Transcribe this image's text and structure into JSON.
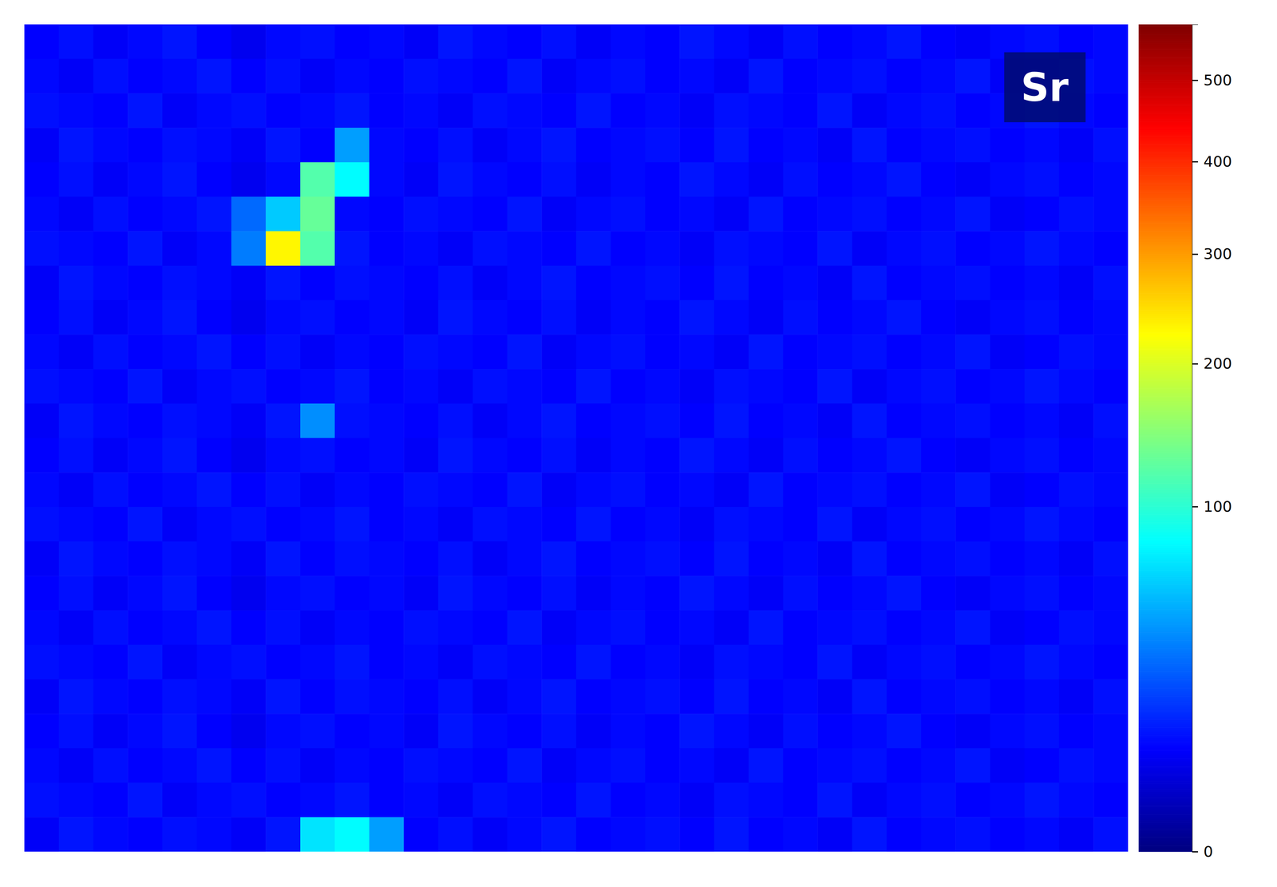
{
  "chart_data": {
    "type": "heatmap",
    "tick_labels": false,
    "annotations": [
      "Sr"
    ],
    "colorbar": {
      "range": [
        0,
        575
      ],
      "ticks": [
        0,
        100,
        200,
        300,
        400,
        500
      ]
    },
    "values": [
      [
        9,
        11,
        8,
        10,
        12,
        9,
        7,
        10,
        11,
        9,
        10,
        8,
        12,
        10,
        9,
        11,
        8,
        10,
        9,
        12,
        10,
        8,
        11,
        9,
        10,
        12,
        9,
        8,
        10,
        11,
        9,
        10
      ],
      [
        10,
        8,
        11,
        9,
        10,
        12,
        9,
        11,
        8,
        10,
        9,
        11,
        10,
        9,
        12,
        8,
        10,
        11,
        9,
        10,
        8,
        12,
        9,
        10,
        11,
        9,
        10,
        12,
        8,
        9,
        11,
        10
      ],
      [
        11,
        10,
        9,
        12,
        8,
        10,
        11,
        9,
        10,
        12,
        9,
        10,
        8,
        11,
        10,
        9,
        12,
        9,
        10,
        8,
        11,
        10,
        9,
        12,
        8,
        10,
        11,
        9,
        10,
        12,
        10,
        9
      ],
      [
        8,
        12,
        10,
        9,
        11,
        10,
        8,
        12,
        9,
        45,
        10,
        9,
        11,
        8,
        10,
        12,
        9,
        10,
        11,
        9,
        12,
        9,
        10,
        8,
        12,
        9,
        10,
        11,
        9,
        10,
        8,
        11
      ],
      [
        9,
        11,
        8,
        10,
        12,
        9,
        7,
        10,
        120,
        80,
        10,
        8,
        12,
        10,
        9,
        11,
        8,
        10,
        9,
        12,
        10,
        8,
        11,
        9,
        10,
        12,
        9,
        8,
        10,
        11,
        9,
        10
      ],
      [
        10,
        8,
        11,
        9,
        10,
        12,
        30,
        60,
        130,
        10,
        9,
        11,
        10,
        9,
        12,
        8,
        10,
        11,
        9,
        10,
        8,
        12,
        9,
        10,
        11,
        9,
        10,
        12,
        8,
        9,
        11,
        10
      ],
      [
        11,
        10,
        9,
        12,
        8,
        10,
        35,
        230,
        120,
        12,
        9,
        10,
        8,
        11,
        10,
        9,
        12,
        9,
        10,
        8,
        11,
        10,
        9,
        12,
        8,
        10,
        11,
        9,
        10,
        12,
        10,
        9
      ],
      [
        8,
        12,
        10,
        9,
        11,
        10,
        8,
        12,
        9,
        11,
        10,
        9,
        11,
        8,
        10,
        12,
        9,
        10,
        11,
        9,
        12,
        9,
        10,
        8,
        12,
        9,
        10,
        11,
        9,
        10,
        8,
        11
      ],
      [
        9,
        11,
        8,
        10,
        12,
        9,
        7,
        10,
        11,
        9,
        10,
        8,
        12,
        10,
        9,
        11,
        8,
        10,
        9,
        12,
        10,
        8,
        11,
        9,
        10,
        12,
        9,
        8,
        10,
        11,
        9,
        10
      ],
      [
        10,
        8,
        11,
        9,
        10,
        12,
        9,
        11,
        8,
        10,
        9,
        11,
        10,
        9,
        12,
        8,
        10,
        11,
        9,
        10,
        8,
        12,
        9,
        10,
        11,
        9,
        10,
        12,
        8,
        9,
        11,
        10
      ],
      [
        11,
        10,
        9,
        12,
        8,
        10,
        11,
        9,
        10,
        12,
        9,
        10,
        8,
        11,
        10,
        9,
        12,
        9,
        10,
        8,
        11,
        10,
        9,
        12,
        8,
        10,
        11,
        9,
        10,
        12,
        10,
        9
      ],
      [
        8,
        12,
        10,
        9,
        11,
        10,
        8,
        12,
        40,
        11,
        10,
        9,
        11,
        8,
        10,
        12,
        9,
        10,
        11,
        9,
        12,
        9,
        10,
        8,
        12,
        9,
        10,
        11,
        9,
        10,
        8,
        11
      ],
      [
        9,
        11,
        8,
        10,
        12,
        9,
        7,
        10,
        11,
        9,
        10,
        8,
        12,
        10,
        9,
        11,
        8,
        10,
        9,
        12,
        10,
        8,
        11,
        9,
        10,
        12,
        9,
        8,
        10,
        11,
        9,
        10
      ],
      [
        10,
        8,
        11,
        9,
        10,
        12,
        9,
        11,
        8,
        10,
        9,
        11,
        10,
        9,
        12,
        8,
        10,
        11,
        9,
        10,
        8,
        12,
        9,
        10,
        11,
        9,
        10,
        12,
        8,
        9,
        11,
        10
      ],
      [
        11,
        10,
        9,
        12,
        8,
        10,
        11,
        9,
        10,
        12,
        9,
        10,
        8,
        11,
        10,
        9,
        12,
        9,
        10,
        8,
        11,
        10,
        9,
        12,
        8,
        10,
        11,
        9,
        10,
        12,
        10,
        9
      ],
      [
        8,
        12,
        10,
        9,
        11,
        10,
        8,
        12,
        9,
        11,
        10,
        9,
        11,
        8,
        10,
        12,
        9,
        10,
        11,
        9,
        12,
        9,
        10,
        8,
        12,
        9,
        10,
        11,
        9,
        10,
        8,
        11
      ],
      [
        9,
        11,
        8,
        10,
        12,
        9,
        7,
        10,
        11,
        9,
        10,
        8,
        12,
        10,
        9,
        11,
        8,
        10,
        9,
        12,
        10,
        8,
        11,
        9,
        10,
        12,
        9,
        8,
        10,
        11,
        9,
        10
      ],
      [
        10,
        8,
        11,
        9,
        10,
        12,
        9,
        11,
        8,
        10,
        9,
        11,
        10,
        9,
        12,
        8,
        10,
        11,
        9,
        10,
        8,
        12,
        9,
        10,
        11,
        9,
        10,
        12,
        8,
        9,
        11,
        10
      ],
      [
        11,
        10,
        9,
        12,
        8,
        10,
        11,
        9,
        10,
        12,
        9,
        10,
        8,
        11,
        10,
        9,
        12,
        9,
        10,
        8,
        11,
        10,
        9,
        12,
        8,
        10,
        11,
        9,
        10,
        12,
        10,
        9
      ],
      [
        8,
        12,
        10,
        9,
        11,
        10,
        8,
        12,
        9,
        11,
        10,
        9,
        11,
        8,
        10,
        12,
        9,
        10,
        11,
        9,
        12,
        9,
        10,
        8,
        12,
        9,
        10,
        11,
        9,
        10,
        8,
        11
      ],
      [
        9,
        11,
        8,
        10,
        12,
        9,
        7,
        10,
        11,
        9,
        10,
        8,
        12,
        10,
        9,
        11,
        8,
        10,
        9,
        12,
        10,
        8,
        11,
        9,
        10,
        12,
        9,
        8,
        10,
        11,
        9,
        10
      ],
      [
        10,
        8,
        11,
        9,
        10,
        12,
        9,
        11,
        8,
        10,
        9,
        11,
        10,
        9,
        12,
        8,
        10,
        11,
        9,
        10,
        8,
        12,
        9,
        10,
        11,
        9,
        10,
        12,
        8,
        9,
        11,
        10
      ],
      [
        11,
        10,
        9,
        12,
        8,
        10,
        11,
        9,
        10,
        12,
        9,
        10,
        8,
        11,
        10,
        9,
        12,
        9,
        10,
        8,
        11,
        10,
        9,
        12,
        8,
        10,
        11,
        9,
        10,
        12,
        10,
        9
      ],
      [
        8,
        12,
        10,
        9,
        11,
        10,
        8,
        12,
        70,
        80,
        45,
        9,
        11,
        8,
        10,
        12,
        9,
        10,
        11,
        9,
        12,
        9,
        10,
        8,
        12,
        9,
        10,
        11,
        9,
        10,
        8,
        11
      ]
    ]
  }
}
